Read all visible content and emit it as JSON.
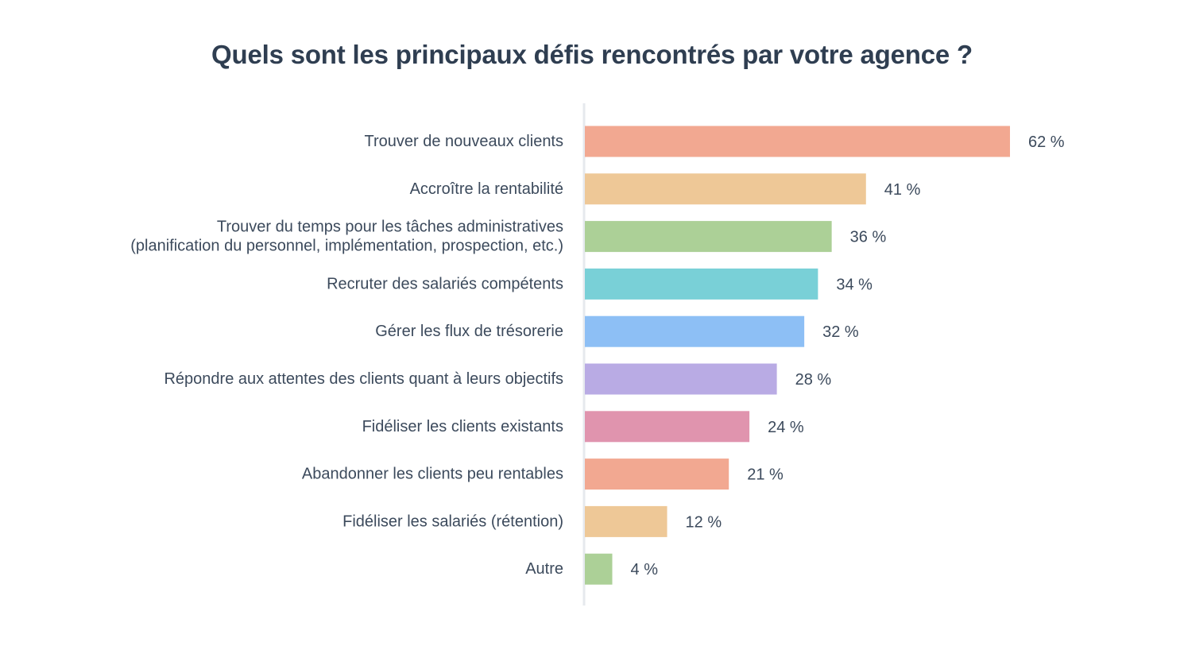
{
  "chart_data": {
    "type": "bar",
    "orientation": "horizontal",
    "title": "Quels sont les principaux défis rencontrés par votre agence ?",
    "xlabel": "",
    "ylabel": "",
    "xlim": [
      0,
      62
    ],
    "categories": [
      [
        "Trouver de nouveaux clients"
      ],
      [
        "Accroître la rentabilité"
      ],
      [
        "Trouver du temps pour les tâches administratives",
        "(planification du personnel, implémentation, prospection, etc.)"
      ],
      [
        "Recruter des salariés compétents"
      ],
      [
        "Gérer les flux de trésorerie"
      ],
      [
        "Répondre aux attentes des clients quant à leurs objectifs"
      ],
      [
        "Fidéliser les clients existants"
      ],
      [
        "Abandonner les clients peu rentables"
      ],
      [
        "Fidéliser les salariés (rétention)"
      ],
      [
        "Autre"
      ]
    ],
    "values": [
      62,
      41,
      36,
      34,
      32,
      28,
      24,
      21,
      12,
      4
    ],
    "value_labels": [
      "62 %",
      "41 %",
      "36 %",
      "34 %",
      "32 %",
      "28 %",
      "24 %",
      "21 %",
      "12 %",
      "4 %"
    ],
    "colors": [
      "#f2a891",
      "#eec897",
      "#acd097",
      "#79d0d7",
      "#8dbff5",
      "#b9abe4",
      "#e094ae",
      "#f2a891",
      "#eec897",
      "#acd097"
    ],
    "axis_color": "#e6e9ee",
    "text_color": "#3c4a5c"
  }
}
